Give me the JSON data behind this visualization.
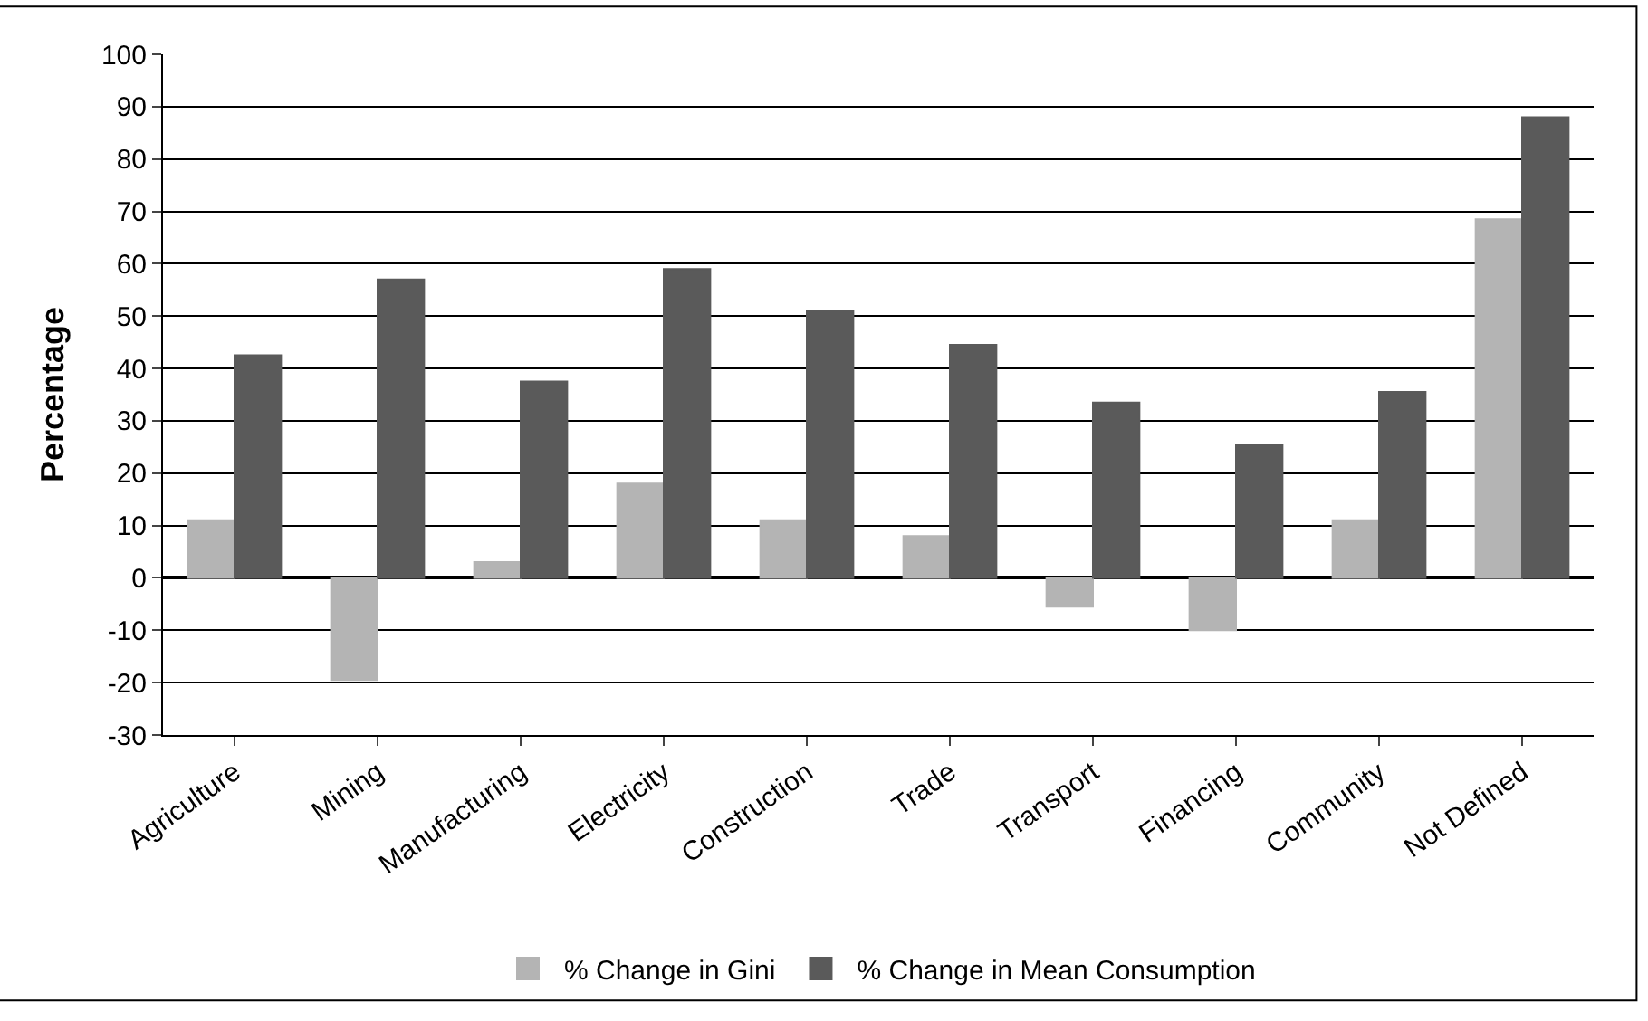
{
  "chart_data": {
    "type": "bar",
    "ylabel": "Percentage",
    "categories": [
      "Agriculture",
      "Mining",
      "Manufacturing",
      "Electricity",
      "Construction",
      "Trade",
      "Transport",
      "Financing",
      "Community",
      "Not Defined"
    ],
    "series": [
      {
        "name": "% Change in Gini",
        "color": "#b4b4b4",
        "values": [
          11,
          -19.5,
          3,
          18,
          11,
          8,
          -5.5,
          -10,
          11,
          68.5
        ]
      },
      {
        "name": "% Change in Mean Consumption",
        "color": "#5a5a5a",
        "values": [
          42.5,
          57,
          37.5,
          59,
          51,
          44.5,
          33.5,
          25.5,
          35.5,
          88
        ]
      }
    ],
    "ylim": [
      -30,
      100
    ],
    "yticks": [
      -30,
      -20,
      -10,
      0,
      10,
      20,
      30,
      40,
      50,
      60,
      70,
      80,
      90,
      100
    ],
    "grid": "y",
    "legend": "bottom"
  }
}
